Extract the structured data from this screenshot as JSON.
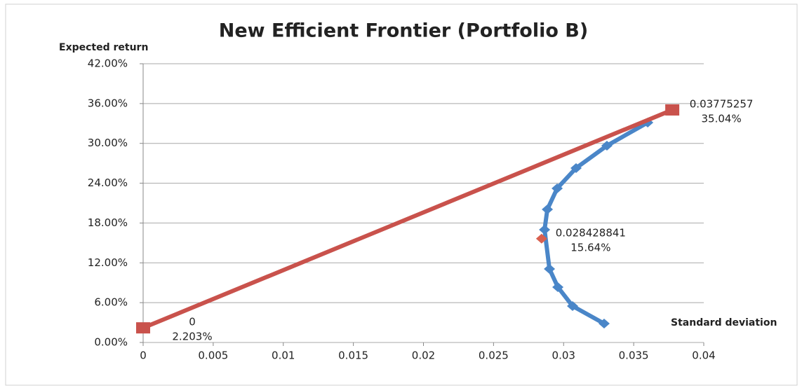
{
  "chart_data": {
    "type": "line",
    "title": "New Efficient Frontier (Portfolio B)",
    "y_label": "Expected return",
    "x_label": "Standard deviation",
    "xlim": [
      0,
      0.04
    ],
    "xticks": [
      0,
      0.005,
      0.01,
      0.015,
      0.02,
      0.025,
      0.03,
      0.035,
      0.04
    ],
    "ylim": [
      0,
      42
    ],
    "yticks": [
      {
        "value": 0,
        "label": "0.00%"
      },
      {
        "value": 6,
        "label": "6.00%"
      },
      {
        "value": 12,
        "label": "12.00%"
      },
      {
        "value": 18,
        "label": "18.00%"
      },
      {
        "value": 24,
        "label": "24.00%"
      },
      {
        "value": 30,
        "label": "30.00%"
      },
      {
        "value": 36,
        "label": "36.00%"
      },
      {
        "value": 42,
        "label": "42.00%"
      }
    ],
    "grid": true,
    "series": [
      {
        "color": "#4a86c8",
        "marker": "diamond",
        "x": [
          0.03289,
          0.03064,
          0.02959,
          0.02899,
          0.02864,
          0.02884,
          0.02954,
          0.03089,
          0.03309,
          0.036
        ],
        "values": [
          2.85,
          5.49,
          8.34,
          11.08,
          16.99,
          20.05,
          23.22,
          26.28,
          29.65,
          33.14
        ]
      },
      {
        "color": "#c9524c",
        "marker": "square",
        "x": [
          0,
          0.03775257
        ],
        "values": [
          2.203,
          35.04
        ],
        "value_labels": [
          "2.203%",
          "35.04%"
        ]
      },
      {
        "color": "#d9604f",
        "marker": "diamond",
        "x": [
          0.028428841
        ],
        "values": [
          15.64
        ],
        "value_labels": [
          "15.64%"
        ]
      }
    ]
  }
}
